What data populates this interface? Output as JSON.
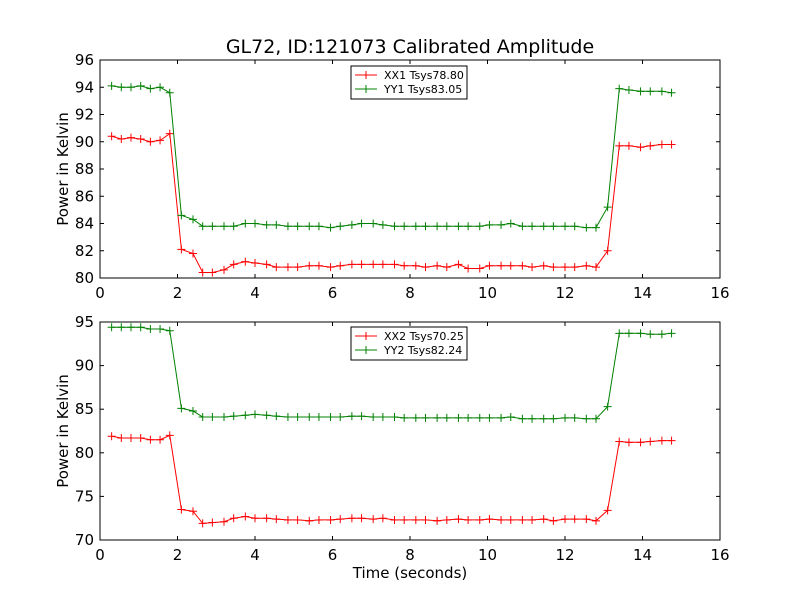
{
  "figure": {
    "title": "GL72, ID:121073 Calibrated Amplitude",
    "xlabel": "Time (seconds)"
  },
  "chart_data": [
    {
      "type": "line",
      "title": "GL72, ID:121073 Calibrated Amplitude",
      "xlabel": "",
      "ylabel": "Power in Kelvin",
      "xlim": [
        0,
        16
      ],
      "ylim": [
        80,
        96
      ],
      "xticks": [
        0,
        2,
        4,
        6,
        8,
        10,
        12,
        14,
        16
      ],
      "yticks": [
        80,
        82,
        84,
        86,
        88,
        90,
        92,
        94,
        96
      ],
      "grid": false,
      "legend_position": "top-center",
      "x": [
        0.3,
        0.55,
        0.8,
        1.05,
        1.3,
        1.55,
        1.8,
        2.1,
        2.4,
        2.65,
        2.9,
        3.2,
        3.45,
        3.75,
        4.0,
        4.3,
        4.55,
        4.85,
        5.1,
        5.4,
        5.65,
        5.95,
        6.2,
        6.5,
        6.75,
        7.05,
        7.3,
        7.6,
        7.85,
        8.15,
        8.4,
        8.7,
        8.95,
        9.25,
        9.5,
        9.8,
        10.05,
        10.35,
        10.6,
        10.9,
        11.15,
        11.45,
        11.7,
        12.0,
        12.25,
        12.55,
        12.8,
        13.1,
        13.4,
        13.65,
        13.95,
        14.2,
        14.5,
        14.75
      ],
      "series": [
        {
          "name": "XX1 Tsys78.80",
          "color": "#ff0000",
          "values": [
            90.4,
            90.2,
            90.3,
            90.2,
            90.0,
            90.1,
            90.6,
            82.1,
            81.8,
            80.4,
            80.4,
            80.6,
            81.0,
            81.2,
            81.1,
            81.0,
            80.8,
            80.8,
            80.8,
            80.9,
            80.9,
            80.8,
            80.9,
            81.0,
            81.0,
            81.0,
            81.0,
            81.0,
            80.9,
            80.9,
            80.8,
            80.9,
            80.8,
            81.0,
            80.7,
            80.7,
            80.9,
            80.9,
            80.9,
            80.9,
            80.8,
            80.9,
            80.8,
            80.8,
            80.8,
            80.9,
            80.8,
            82.0,
            89.7,
            89.7,
            89.6,
            89.7,
            89.8,
            89.8
          ]
        },
        {
          "name": "YY1 Tsys83.05",
          "color": "#008000",
          "values": [
            94.1,
            94.0,
            94.0,
            94.1,
            93.9,
            94.0,
            93.6,
            84.6,
            84.3,
            83.8,
            83.8,
            83.8,
            83.8,
            84.0,
            84.0,
            83.9,
            83.9,
            83.8,
            83.8,
            83.8,
            83.8,
            83.7,
            83.8,
            83.9,
            84.0,
            84.0,
            83.9,
            83.8,
            83.8,
            83.8,
            83.8,
            83.8,
            83.8,
            83.8,
            83.8,
            83.8,
            83.9,
            83.9,
            84.0,
            83.8,
            83.8,
            83.8,
            83.8,
            83.8,
            83.8,
            83.7,
            83.7,
            85.2,
            93.9,
            93.8,
            93.7,
            93.7,
            93.7,
            93.6
          ]
        }
      ]
    },
    {
      "type": "line",
      "title": "",
      "xlabel": "Time (seconds)",
      "ylabel": "Power in Kelvin",
      "xlim": [
        0,
        16
      ],
      "ylim": [
        70,
        95
      ],
      "xticks": [
        0,
        2,
        4,
        6,
        8,
        10,
        12,
        14,
        16
      ],
      "yticks": [
        70,
        75,
        80,
        85,
        90,
        95
      ],
      "grid": false,
      "legend_position": "top-center",
      "x": [
        0.3,
        0.55,
        0.8,
        1.05,
        1.3,
        1.55,
        1.8,
        2.1,
        2.4,
        2.65,
        2.9,
        3.2,
        3.45,
        3.75,
        4.0,
        4.3,
        4.55,
        4.85,
        5.1,
        5.4,
        5.65,
        5.95,
        6.2,
        6.5,
        6.75,
        7.05,
        7.3,
        7.6,
        7.85,
        8.15,
        8.4,
        8.7,
        8.95,
        9.25,
        9.5,
        9.8,
        10.05,
        10.35,
        10.6,
        10.9,
        11.15,
        11.45,
        11.7,
        12.0,
        12.25,
        12.55,
        12.8,
        13.1,
        13.4,
        13.65,
        13.95,
        14.2,
        14.5,
        14.75
      ],
      "series": [
        {
          "name": "XX2 Tsys70.25",
          "color": "#ff0000",
          "values": [
            81.9,
            81.7,
            81.7,
            81.7,
            81.5,
            81.5,
            82.0,
            73.5,
            73.3,
            71.9,
            72.0,
            72.1,
            72.5,
            72.7,
            72.5,
            72.5,
            72.4,
            72.3,
            72.3,
            72.2,
            72.3,
            72.3,
            72.4,
            72.5,
            72.5,
            72.4,
            72.5,
            72.3,
            72.3,
            72.3,
            72.3,
            72.2,
            72.3,
            72.4,
            72.3,
            72.3,
            72.4,
            72.3,
            72.3,
            72.3,
            72.3,
            72.4,
            72.2,
            72.4,
            72.4,
            72.4,
            72.2,
            73.4,
            81.3,
            81.2,
            81.2,
            81.3,
            81.4,
            81.4
          ]
        },
        {
          "name": "YY2 Tsys82.24",
          "color": "#008000",
          "values": [
            94.4,
            94.4,
            94.4,
            94.4,
            94.2,
            94.2,
            94.0,
            85.1,
            84.8,
            84.1,
            84.1,
            84.1,
            84.2,
            84.3,
            84.4,
            84.3,
            84.2,
            84.1,
            84.1,
            84.1,
            84.1,
            84.1,
            84.1,
            84.2,
            84.2,
            84.1,
            84.1,
            84.1,
            84.0,
            84.0,
            84.0,
            84.0,
            84.0,
            84.0,
            84.0,
            84.0,
            84.0,
            84.0,
            84.1,
            83.9,
            83.9,
            83.9,
            83.9,
            84.0,
            84.0,
            83.9,
            83.9,
            85.3,
            93.7,
            93.7,
            93.7,
            93.6,
            93.6,
            93.7
          ]
        }
      ]
    }
  ]
}
